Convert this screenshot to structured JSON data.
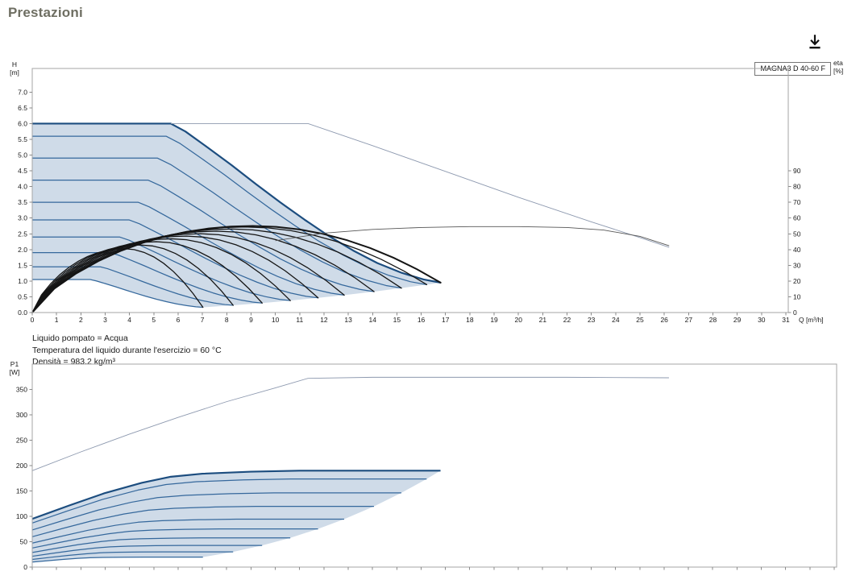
{
  "page": {
    "title": "Prestazioni",
    "download_icon": "download-icon"
  },
  "annotations": {
    "line1": "Liquido pompato = Acqua",
    "line2": "Temperatura del liquido durante l'esercizio = 60 °C",
    "line3": "Densità = 983.2 kg/m³"
  },
  "chart_data": [
    {
      "type": "line",
      "title": "MAGNA3 D 40-60 F",
      "xlabel": "Q [m³/h]",
      "ylabel": "H [m]",
      "ylabel_lines": [
        "H",
        "[m]"
      ],
      "y2label": "eta [%]",
      "y2label_lines": [
        "eta",
        "[%]"
      ],
      "xlim": [
        0,
        31.1
      ],
      "ylim": [
        0,
        7.75
      ],
      "grid": false,
      "legend": "none",
      "xticks": [
        0,
        1,
        2,
        3,
        4,
        5,
        6,
        7,
        8,
        9,
        10,
        11,
        12,
        13,
        14,
        15,
        16,
        17,
        18,
        19,
        20,
        21,
        22,
        23,
        24,
        25,
        26,
        27,
        28,
        29,
        30,
        31
      ],
      "yticks": [
        0,
        0.5,
        1,
        1.5,
        2,
        2.5,
        3,
        3.5,
        4,
        4.5,
        5,
        5.5,
        6,
        6.5,
        7
      ],
      "ytick_decimals": 1,
      "y2ticks": [
        0,
        10,
        20,
        30,
        40,
        50,
        60,
        70,
        80,
        90
      ],
      "y2_unit_in_y": 0.05,
      "envelope": {
        "base_curve_max_speed": [
          [
            0,
            6
          ],
          [
            2,
            6
          ],
          [
            4,
            6
          ],
          [
            5.7,
            6
          ],
          [
            6.3,
            5.75
          ],
          [
            7.2,
            5.25
          ],
          [
            8.2,
            4.68
          ],
          [
            9.2,
            4.08
          ],
          [
            10.2,
            3.5
          ],
          [
            11.2,
            2.95
          ],
          [
            12.2,
            2.43
          ],
          [
            13.2,
            1.97
          ],
          [
            14.2,
            1.57
          ],
          [
            15.2,
            1.26
          ],
          [
            16.1,
            1.05
          ],
          [
            16.8,
            0.95
          ]
        ],
        "speed_ratios": [
          0.966,
          0.904,
          0.837,
          0.764,
          0.7,
          0.632,
          0.563,
          0.492,
          0.418
        ],
        "value_exponent": 2,
        "fill": "#c7d5e4",
        "fill_opacity": 0.85,
        "curve_color": "#35689c",
        "max_curve_color": "#1c4d7f"
      },
      "efficiency_curves": {
        "peak_eta_pct": 55,
        "end_q": 16.8,
        "peak_pos_frac": 0.54,
        "rise_exponent": 0.75,
        "peak_speed_exponent": 0.35,
        "color": "#151515"
      },
      "overlay_lines": [
        {
          "name": "dual-pump-max-curve",
          "color": "#8d99af",
          "width": 0.9,
          "points": [
            [
              5.7,
              6
            ],
            [
              11.35,
              6
            ],
            [
              14,
              5.3
            ],
            [
              17,
              4.48
            ],
            [
              20,
              3.66
            ],
            [
              23,
              2.88
            ],
            [
              25,
              2.38
            ],
            [
              26.2,
              2.07
            ]
          ]
        },
        {
          "name": "dual-pump-eta-curve",
          "color": "#555555",
          "width": 0.9,
          "points": [
            [
              10,
              2.28
            ],
            [
              12,
              2.52
            ],
            [
              14,
              2.64
            ],
            [
              16,
              2.7
            ],
            [
              18,
              2.73
            ],
            [
              20,
              2.73
            ],
            [
              22,
              2.7
            ],
            [
              23.5,
              2.62
            ],
            [
              25,
              2.42
            ],
            [
              26.2,
              2.12
            ]
          ]
        }
      ]
    },
    {
      "type": "line",
      "title": "",
      "xlabel": "",
      "ylabel": "P1 [W]",
      "ylabel_lines": [
        "P1",
        "[W]"
      ],
      "xlim": [
        0,
        33.1
      ],
      "ylim": [
        0,
        400
      ],
      "grid": false,
      "legend": "none",
      "xticks": [
        0,
        1,
        2,
        3,
        4,
        5,
        6,
        7,
        8,
        9,
        10,
        11,
        12,
        13,
        14,
        15,
        16,
        17,
        18,
        19,
        20,
        21,
        22,
        23,
        24,
        25,
        26,
        27,
        28,
        29,
        30,
        31,
        32,
        33
      ],
      "xtick_labels": false,
      "yticks": [
        0,
        50,
        100,
        150,
        200,
        250,
        300,
        350
      ],
      "envelope": {
        "base_curve_max_speed": [
          [
            0,
            95
          ],
          [
            1.5,
            121
          ],
          [
            3,
            146
          ],
          [
            4.5,
            166
          ],
          [
            5.7,
            178
          ],
          [
            7,
            184
          ],
          [
            9,
            188
          ],
          [
            11,
            190
          ],
          [
            13,
            190
          ],
          [
            15,
            190
          ],
          [
            16.8,
            190
          ]
        ],
        "speed_ratios": [
          0.966,
          0.904,
          0.837,
          0.764,
          0.7,
          0.632,
          0.563,
          0.492,
          0.418
        ],
        "value_exponent": 2.6,
        "fill": "#c7d5e4",
        "fill_opacity": 0.85,
        "curve_color": "#35689c",
        "max_curve_color": "#1c4d7f"
      },
      "overlay_lines": [
        {
          "name": "dual-pump-power-curve",
          "color": "#8d99af",
          "width": 0.9,
          "points": [
            [
              0,
              190
            ],
            [
              2,
              227
            ],
            [
              4,
              262
            ],
            [
              6,
              295
            ],
            [
              8,
              326
            ],
            [
              10,
              353
            ],
            [
              11.35,
              372
            ],
            [
              14,
              374
            ],
            [
              18,
              374
            ],
            [
              22,
              374
            ],
            [
              26.2,
              373
            ]
          ]
        }
      ]
    }
  ]
}
